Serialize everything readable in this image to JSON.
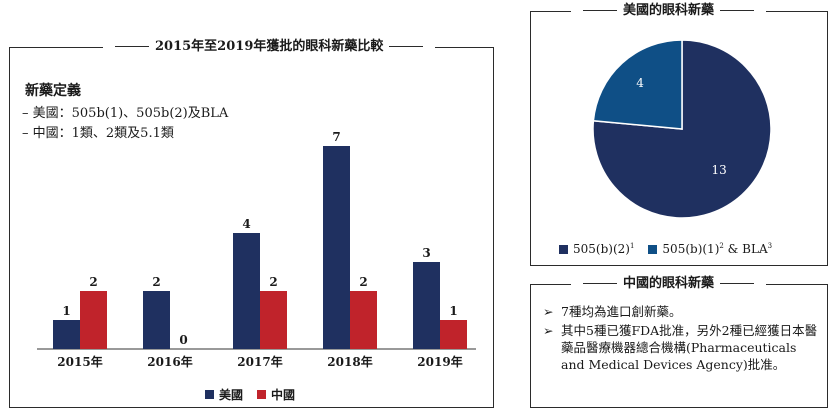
{
  "left_panel": {
    "title": "2015年至2019年獲批的眼科新藥比較",
    "definition_title": "新藥定義",
    "definition_lines": [
      "– 美國：505b(1)、505b(2)及BLA",
      "– 中國：1類、2類及5.1類"
    ]
  },
  "pie_panel": {
    "title": "美國的眼科新藥"
  },
  "china_panel": {
    "title": "中國的眼科新藥",
    "bullets": [
      {
        "arrow": "➢",
        "text": "7種均為進口創新藥。"
      },
      {
        "arrow": "➢",
        "text": "其中5種已獲FDA批准，另外2種已經獲日本醫藥品醫療機器總合機構(Pharmaceuticals and Medical Devices Agency)批准。"
      }
    ]
  },
  "colors": {
    "navy": "#1f3060",
    "red": "#c0232b",
    "blue": "#0f4f86"
  },
  "chart_data": [
    {
      "type": "bar",
      "title": "2015年至2019年獲批的眼科新藥比較",
      "categories": [
        "2015年",
        "2016年",
        "2017年",
        "2018年",
        "2019年"
      ],
      "series": [
        {
          "name": "美國",
          "values": [
            1,
            2,
            4,
            7,
            3
          ],
          "color": "#1f3060"
        },
        {
          "name": "中國",
          "values": [
            2,
            0,
            2,
            2,
            1
          ],
          "color": "#c0232b"
        }
      ],
      "ylim": [
        0,
        7
      ],
      "xlabel": "",
      "ylabel": "",
      "legend": "bottom"
    },
    {
      "type": "pie",
      "title": "美國的眼科新藥",
      "slices": [
        {
          "label": "505(b)(2)",
          "sup": "1",
          "value": 13,
          "color": "#1f3060"
        },
        {
          "label": "505(b)(1)",
          "sup": "2",
          "label_suffix": " & BLA",
          "sup2": "3",
          "value": 4,
          "color": "#0f4f86"
        }
      ],
      "legend": "bottom"
    }
  ]
}
